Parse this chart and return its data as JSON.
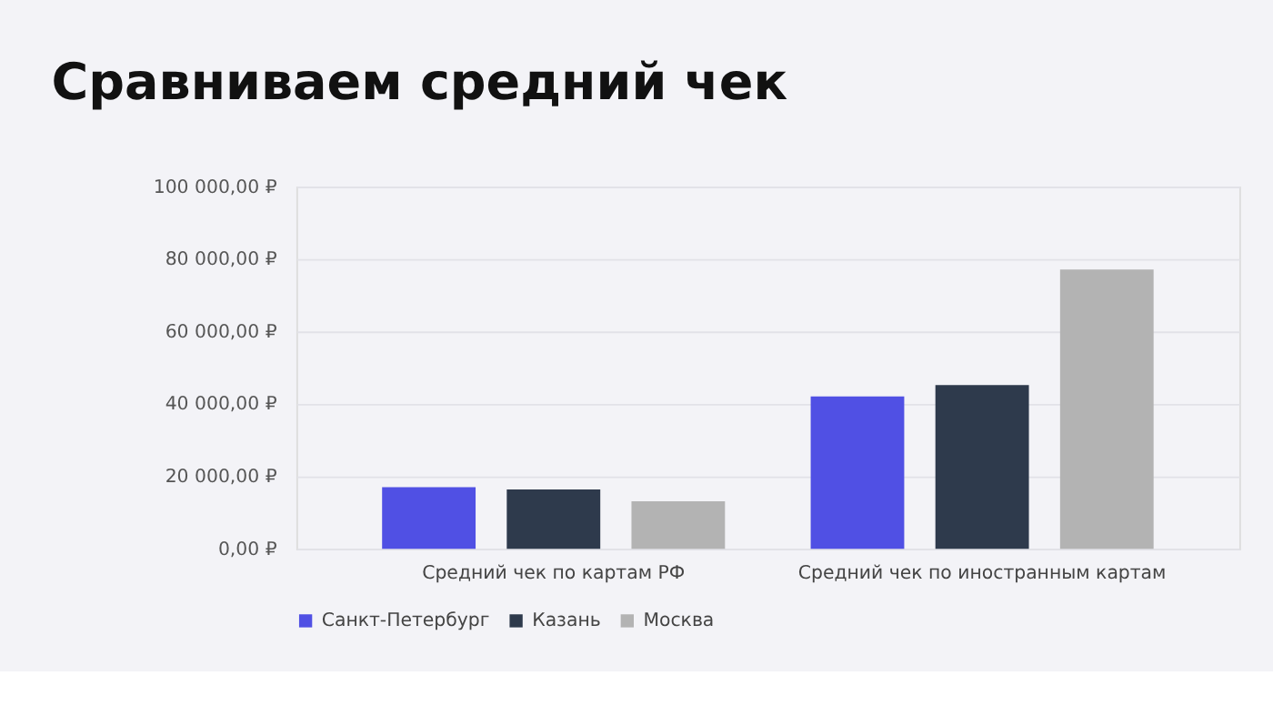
{
  "chart_data": {
    "type": "bar",
    "title": "Сравниваем средний чек",
    "categories": [
      "Средний чек по картам РФ",
      "Средний чек по иностранным картам"
    ],
    "series": [
      {
        "name": "Санкт-Петербург",
        "color": "#5050e4",
        "values": [
          17000,
          42100
        ]
      },
      {
        "name": "Казань",
        "color": "#2e3a4c",
        "values": [
          16400,
          45200
        ]
      },
      {
        "name": "Москва",
        "color": "#b3b3b3",
        "values": [
          13100,
          77100
        ]
      }
    ],
    "ylim": [
      0,
      100000
    ],
    "yticks": [
      {
        "value": 0,
        "label": "0,00 ₽"
      },
      {
        "value": 20000,
        "label": "20 000,00 ₽"
      },
      {
        "value": 40000,
        "label": "40 000,00 ₽"
      },
      {
        "value": 60000,
        "label": "60 000,00 ₽"
      },
      {
        "value": 80000,
        "label": "80 000,00 ₽"
      },
      {
        "value": 100000,
        "label": "100 000,00 ₽"
      }
    ],
    "grid": "y",
    "legend": "bottom"
  }
}
